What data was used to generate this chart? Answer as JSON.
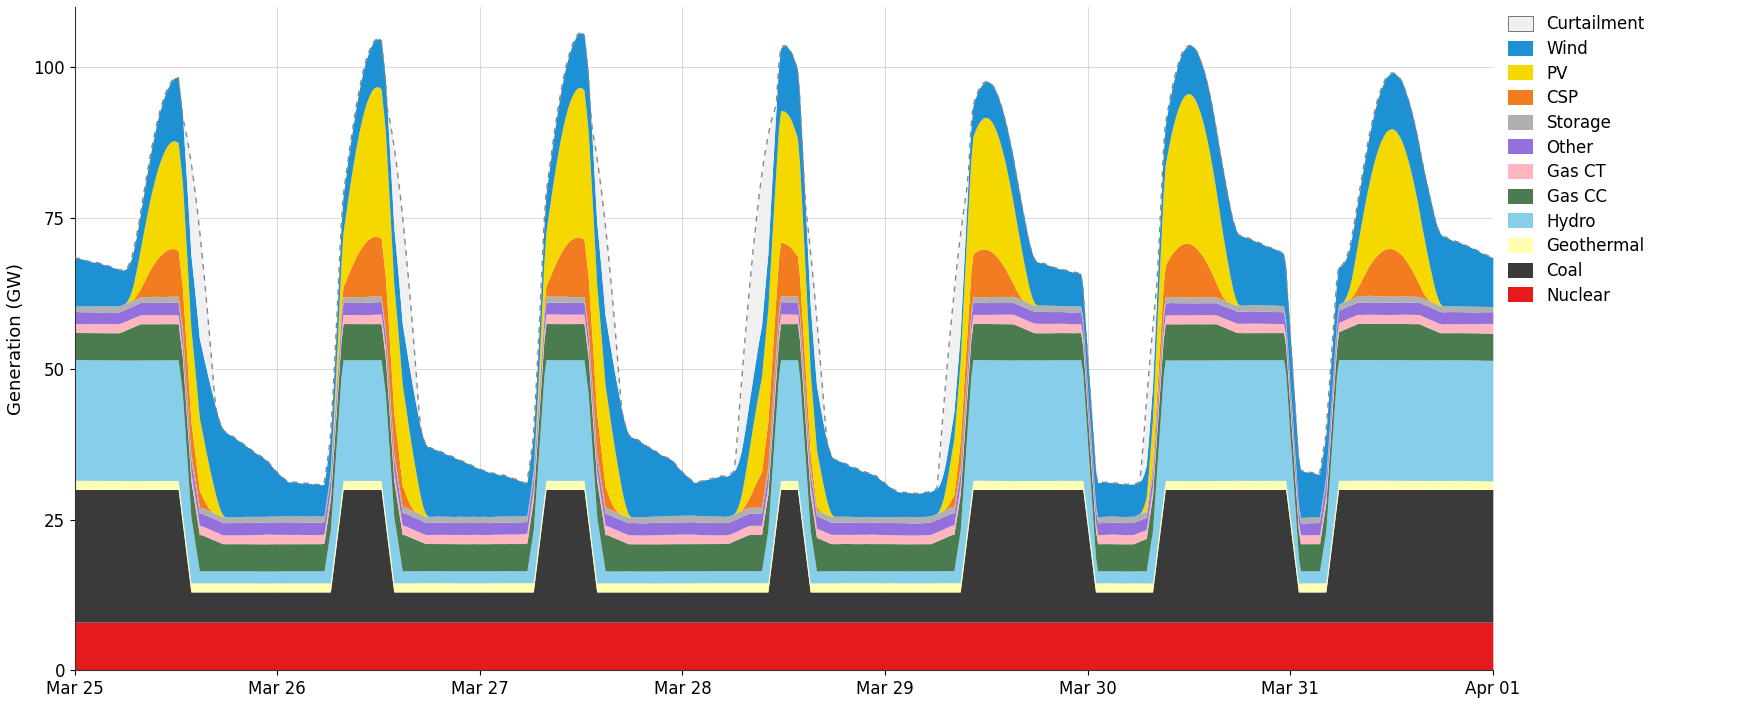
{
  "colors": {
    "Nuclear": "#e41a1c",
    "Coal": "#3a3a3a",
    "Geothermal": "#ffffb3",
    "Hydro": "#87ceeb",
    "Gas CC": "#4a7c50",
    "Gas CT": "#ffb6c1",
    "Other": "#9370db",
    "Storage": "#b0b0b0",
    "CSP": "#f47c20",
    "PV": "#f5d800",
    "Wind": "#1e90d4",
    "Curtailment": "#f0f0f0"
  },
  "legend_labels": [
    "Curtailment",
    "Wind",
    "PV",
    "CSP",
    "Storage",
    "Other",
    "Gas CT",
    "Gas CC",
    "Hydro",
    "Geothermal",
    "Coal",
    "Nuclear"
  ],
  "ylabel": "Generation (GW)",
  "ylim": [
    0,
    110
  ],
  "yticks": [
    0,
    25,
    50,
    75,
    100
  ],
  "xtick_labels": [
    "Mar 25",
    "Mar 26",
    "Mar 27",
    "Mar 28",
    "Mar 29",
    "Mar 30",
    "Mar 31",
    "Apr 01"
  ],
  "n_points": 672,
  "n_days": 7
}
